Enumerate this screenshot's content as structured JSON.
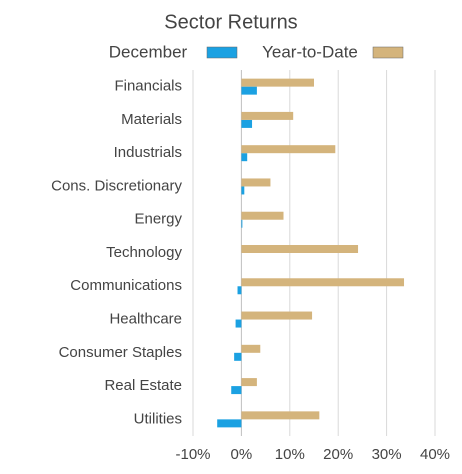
{
  "chart_data": {
    "type": "hbar",
    "title": "Sector Returns",
    "categories": [
      "Financials",
      "Materials",
      "Industrials",
      "Cons. Discretionary",
      "Energy",
      "Technology",
      "Communications",
      "Healthcare",
      "Consumer Staples",
      "Real Estate",
      "Utilities"
    ],
    "series": [
      {
        "name": "December",
        "color": "#1ba1e2",
        "values": [
          3.2,
          2.2,
          1.2,
          0.6,
          0.2,
          0,
          -0.8,
          -1.2,
          -1.5,
          -2.1,
          -5.0
        ]
      },
      {
        "name": "Year-to-Date",
        "color": "#d4b47c",
        "values": [
          15.0,
          10.7,
          19.4,
          6.0,
          8.7,
          24.1,
          33.6,
          14.6,
          3.9,
          3.2,
          16.1
        ]
      }
    ],
    "xlim": [
      -10,
      40
    ],
    "xticks": [
      {
        "value": -10,
        "label": "-10%"
      },
      {
        "value": 0,
        "label": "0%"
      },
      {
        "value": 10,
        "label": "10%"
      },
      {
        "value": 20,
        "label": "20%"
      },
      {
        "value": 30,
        "label": "30%"
      },
      {
        "value": 40,
        "label": "40%"
      }
    ],
    "grid": true
  }
}
